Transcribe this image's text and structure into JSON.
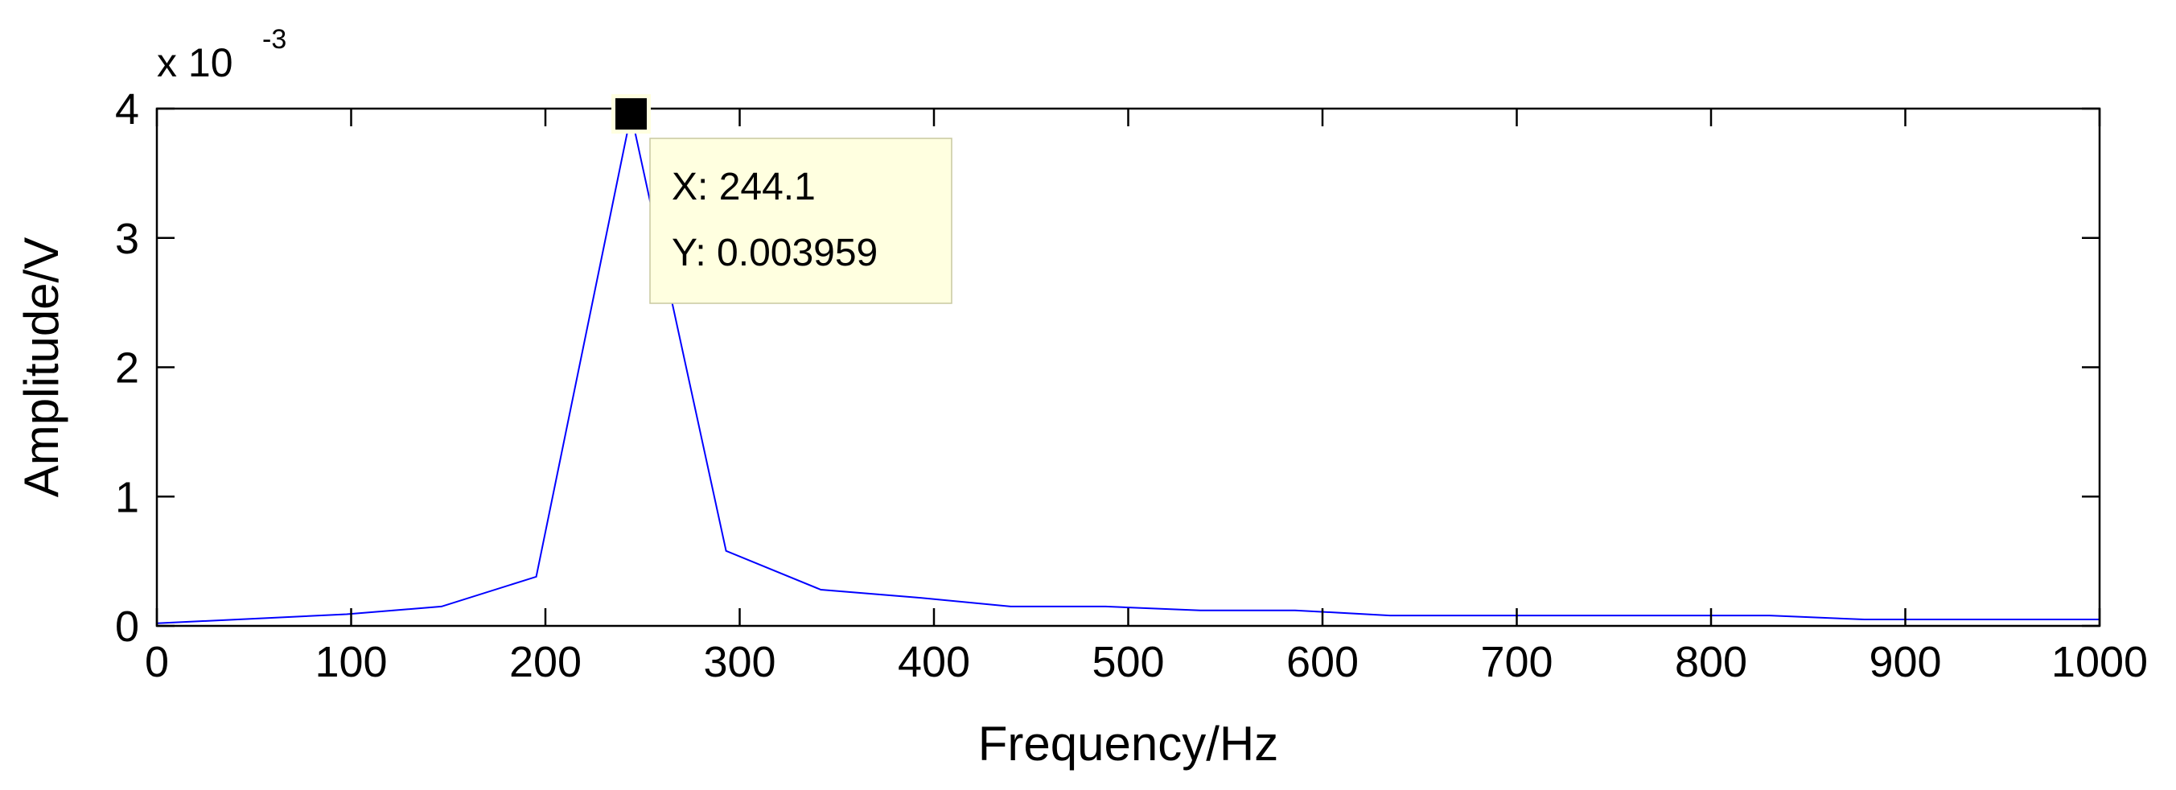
{
  "chart_data": {
    "type": "line",
    "xlabel": "Frequency/Hz",
    "ylabel": "Amplitude/V",
    "y_exponent": {
      "base": "x 10",
      "power": "-3"
    },
    "xlim": [
      0,
      1000
    ],
    "ylim": [
      0,
      4
    ],
    "x_ticks": [
      0,
      100,
      200,
      300,
      400,
      500,
      600,
      700,
      800,
      900,
      1000
    ],
    "y_ticks": [
      0,
      1,
      2,
      3,
      4
    ],
    "grid": false,
    "line_color": "#0000ff",
    "series": [
      {
        "x": [
          0,
          97.7,
          146.5,
          195.3,
          244.1,
          293.0,
          341.8,
          390.6,
          439.5,
          488.3,
          537.1,
          585.9,
          634.8,
          683.6,
          732.4,
          781.3,
          830.1,
          878.9,
          927.7,
          976.6,
          1000
        ],
        "y": [
          2e-05,
          9e-05,
          0.00015,
          0.00038,
          0.003959,
          0.00058,
          0.00028,
          0.00022,
          0.00015,
          0.00015,
          0.00012,
          0.00012,
          8e-05,
          8e-05,
          8e-05,
          8e-05,
          8e-05,
          5e-05,
          5e-05,
          5e-05,
          5e-05
        ]
      }
    ],
    "datatip": {
      "x_text": "X: 244.1",
      "y_text": "Y: 0.003959",
      "x": 244.1,
      "y": 0.003959,
      "bg_color": "#ffffe0"
    }
  }
}
